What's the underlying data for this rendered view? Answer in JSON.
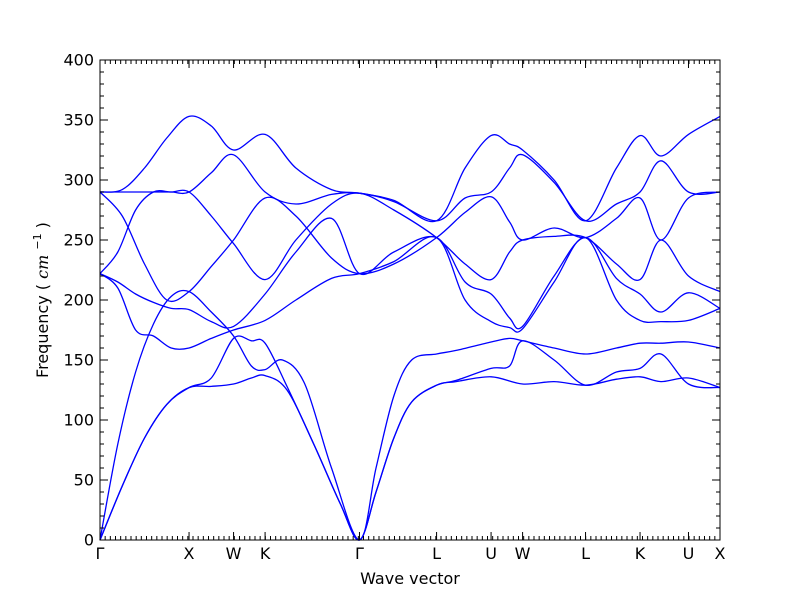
{
  "chart_data": {
    "type": "line",
    "xlabel": "Wave vector",
    "ylabel": "Frequency",
    "ylabel_unit_base": "cm",
    "ylabel_unit_exp": "−1",
    "ylim": [
      0,
      400
    ],
    "yticks": [
      0,
      50,
      100,
      150,
      200,
      250,
      300,
      350,
      400
    ],
    "xlim": [
      0,
      6.963
    ],
    "grid": false,
    "legend": "none",
    "line_color": "#0000ff",
    "high_symmetry_points": [
      {
        "label": "Γ",
        "x": 0.0
      },
      {
        "label": "X",
        "x": 1.0
      },
      {
        "label": "W",
        "x": 1.5
      },
      {
        "label": "K",
        "x": 1.854
      },
      {
        "label": "Γ",
        "x": 2.914
      },
      {
        "label": "L",
        "x": 3.78
      },
      {
        "label": "U",
        "x": 4.392
      },
      {
        "label": "W",
        "x": 4.746
      },
      {
        "label": "L",
        "x": 5.453
      },
      {
        "label": "K",
        "x": 6.065
      },
      {
        "label": "U",
        "x": 6.609
      },
      {
        "label": "X",
        "x": 6.963
      }
    ],
    "bands": [
      {
        "values": [
          [
            0,
            0
          ],
          [
            0.25,
            45
          ],
          [
            0.5,
            85
          ],
          [
            0.75,
            113
          ],
          [
            1.0,
            127
          ],
          [
            1.25,
            128
          ],
          [
            1.5,
            130
          ],
          [
            1.7,
            135
          ],
          [
            1.854,
            137
          ],
          [
            2.1,
            125
          ],
          [
            2.4,
            80
          ],
          [
            2.7,
            30
          ],
          [
            2.914,
            0
          ],
          [
            3.1,
            40
          ],
          [
            3.3,
            85
          ],
          [
            3.5,
            115
          ],
          [
            3.78,
            129
          ],
          [
            4.0,
            132
          ],
          [
            4.392,
            136
          ],
          [
            4.746,
            130
          ],
          [
            5.1,
            132
          ],
          [
            5.453,
            129
          ],
          [
            5.8,
            134
          ],
          [
            6.065,
            136
          ],
          [
            6.3,
            132
          ],
          [
            6.609,
            135
          ],
          [
            6.963,
            127
          ]
        ]
      },
      {
        "values": [
          [
            0,
            0
          ],
          [
            0.25,
            45
          ],
          [
            0.5,
            85
          ],
          [
            0.75,
            113
          ],
          [
            1.0,
            127
          ],
          [
            1.25,
            135
          ],
          [
            1.5,
            168
          ],
          [
            1.7,
            166
          ],
          [
            1.854,
            164
          ],
          [
            2.1,
            128
          ],
          [
            2.4,
            80
          ],
          [
            2.7,
            30
          ],
          [
            2.914,
            0
          ],
          [
            3.1,
            40
          ],
          [
            3.3,
            85
          ],
          [
            3.5,
            115
          ],
          [
            3.78,
            129
          ],
          [
            4.0,
            133
          ],
          [
            4.392,
            143
          ],
          [
            4.6,
            145
          ],
          [
            4.746,
            166
          ],
          [
            5.1,
            150
          ],
          [
            5.453,
            129
          ],
          [
            5.8,
            140
          ],
          [
            6.065,
            143
          ],
          [
            6.3,
            155
          ],
          [
            6.609,
            130
          ],
          [
            6.963,
            127
          ]
        ]
      },
      {
        "values": [
          [
            0,
            0
          ],
          [
            0.2,
            80
          ],
          [
            0.4,
            140
          ],
          [
            0.6,
            180
          ],
          [
            0.8,
            203
          ],
          [
            1.0,
            207
          ],
          [
            1.25,
            190
          ],
          [
            1.5,
            170
          ],
          [
            1.7,
            145
          ],
          [
            1.854,
            142
          ],
          [
            2.05,
            150
          ],
          [
            2.3,
            130
          ],
          [
            2.6,
            60
          ],
          [
            2.914,
            0
          ],
          [
            3.1,
            60
          ],
          [
            3.3,
            120
          ],
          [
            3.5,
            150
          ],
          [
            3.78,
            155
          ],
          [
            4.0,
            158
          ],
          [
            4.392,
            165
          ],
          [
            4.6,
            168
          ],
          [
            4.746,
            166
          ],
          [
            5.1,
            160
          ],
          [
            5.453,
            155
          ],
          [
            5.8,
            160
          ],
          [
            6.065,
            164
          ],
          [
            6.3,
            164
          ],
          [
            6.609,
            165
          ],
          [
            6.963,
            160
          ]
        ]
      },
      {
        "values": [
          [
            0,
            222
          ],
          [
            0.2,
            210
          ],
          [
            0.4,
            175
          ],
          [
            0.6,
            170
          ],
          [
            0.8,
            160
          ],
          [
            1.0,
            160
          ],
          [
            1.25,
            168
          ],
          [
            1.5,
            175
          ],
          [
            1.854,
            183
          ],
          [
            2.2,
            200
          ],
          [
            2.6,
            218
          ],
          [
            2.914,
            222
          ],
          [
            3.3,
            232
          ],
          [
            3.78,
            252
          ],
          [
            4.1,
            200
          ],
          [
            4.392,
            182
          ],
          [
            4.6,
            177
          ],
          [
            4.746,
            176
          ],
          [
            5.1,
            215
          ],
          [
            5.453,
            252
          ],
          [
            5.8,
            200
          ],
          [
            6.065,
            183
          ],
          [
            6.3,
            182
          ],
          [
            6.609,
            183
          ],
          [
            6.963,
            193
          ]
        ]
      },
      {
        "values": [
          [
            0,
            222
          ],
          [
            0.2,
            215
          ],
          [
            0.4,
            205
          ],
          [
            0.6,
            198
          ],
          [
            0.8,
            193
          ],
          [
            1.0,
            192
          ],
          [
            1.25,
            182
          ],
          [
            1.5,
            178
          ],
          [
            1.854,
            205
          ],
          [
            2.2,
            240
          ],
          [
            2.6,
            268
          ],
          [
            2.914,
            222
          ],
          [
            3.3,
            240
          ],
          [
            3.78,
            252
          ],
          [
            4.1,
            215
          ],
          [
            4.392,
            205
          ],
          [
            4.6,
            185
          ],
          [
            4.746,
            178
          ],
          [
            5.1,
            220
          ],
          [
            5.453,
            252
          ],
          [
            5.8,
            218
          ],
          [
            6.065,
            205
          ],
          [
            6.3,
            190
          ],
          [
            6.609,
            206
          ],
          [
            6.963,
            193
          ]
        ]
      },
      {
        "values": [
          [
            0,
            222
          ],
          [
            0.2,
            240
          ],
          [
            0.4,
            275
          ],
          [
            0.6,
            290
          ],
          [
            0.8,
            290
          ],
          [
            1.0,
            290
          ],
          [
            1.25,
            270
          ],
          [
            1.5,
            247
          ],
          [
            1.854,
            217
          ],
          [
            2.2,
            250
          ],
          [
            2.6,
            280
          ],
          [
            2.914,
            289
          ],
          [
            3.3,
            275
          ],
          [
            3.78,
            252
          ],
          [
            4.1,
            230
          ],
          [
            4.392,
            217
          ],
          [
            4.6,
            240
          ],
          [
            4.746,
            250
          ],
          [
            5.1,
            253
          ],
          [
            5.453,
            252
          ],
          [
            5.8,
            230
          ],
          [
            6.065,
            217
          ],
          [
            6.3,
            250
          ],
          [
            6.609,
            220
          ],
          [
            6.963,
            207
          ]
        ]
      },
      {
        "values": [
          [
            0,
            290
          ],
          [
            0.25,
            270
          ],
          [
            0.5,
            230
          ],
          [
            0.75,
            200
          ],
          [
            1.0,
            207
          ],
          [
            1.25,
            228
          ],
          [
            1.5,
            250
          ],
          [
            1.854,
            285
          ],
          [
            2.2,
            270
          ],
          [
            2.6,
            235
          ],
          [
            2.914,
            222
          ],
          [
            3.3,
            230
          ],
          [
            3.78,
            252
          ],
          [
            4.1,
            273
          ],
          [
            4.392,
            286
          ],
          [
            4.6,
            265
          ],
          [
            4.746,
            250
          ],
          [
            5.1,
            260
          ],
          [
            5.453,
            252
          ],
          [
            5.8,
            268
          ],
          [
            6.065,
            285
          ],
          [
            6.3,
            250
          ],
          [
            6.609,
            285
          ],
          [
            6.963,
            290
          ]
        ]
      },
      {
        "values": [
          [
            0,
            290
          ],
          [
            0.3,
            290
          ],
          [
            0.6,
            290
          ],
          [
            0.8,
            290
          ],
          [
            1.0,
            290
          ],
          [
            1.25,
            306
          ],
          [
            1.5,
            321
          ],
          [
            1.854,
            290
          ],
          [
            2.2,
            280
          ],
          [
            2.6,
            288
          ],
          [
            2.914,
            289
          ],
          [
            3.3,
            282
          ],
          [
            3.78,
            266
          ],
          [
            4.1,
            285
          ],
          [
            4.392,
            290
          ],
          [
            4.6,
            310
          ],
          [
            4.746,
            321
          ],
          [
            5.1,
            298
          ],
          [
            5.453,
            266
          ],
          [
            5.8,
            280
          ],
          [
            6.065,
            290
          ],
          [
            6.3,
            316
          ],
          [
            6.609,
            290
          ],
          [
            6.963,
            290
          ]
        ]
      },
      {
        "values": [
          [
            0,
            290
          ],
          [
            0.25,
            292
          ],
          [
            0.5,
            310
          ],
          [
            0.75,
            335
          ],
          [
            1.0,
            353
          ],
          [
            1.25,
            345
          ],
          [
            1.5,
            325
          ],
          [
            1.854,
            338
          ],
          [
            2.2,
            310
          ],
          [
            2.6,
            292
          ],
          [
            2.914,
            289
          ],
          [
            3.3,
            283
          ],
          [
            3.78,
            266
          ],
          [
            4.1,
            310
          ],
          [
            4.392,
            337
          ],
          [
            4.6,
            330
          ],
          [
            4.746,
            325
          ],
          [
            5.1,
            300
          ],
          [
            5.453,
            266
          ],
          [
            5.8,
            310
          ],
          [
            6.065,
            337
          ],
          [
            6.3,
            320
          ],
          [
            6.609,
            338
          ],
          [
            6.963,
            353
          ]
        ]
      }
    ]
  }
}
